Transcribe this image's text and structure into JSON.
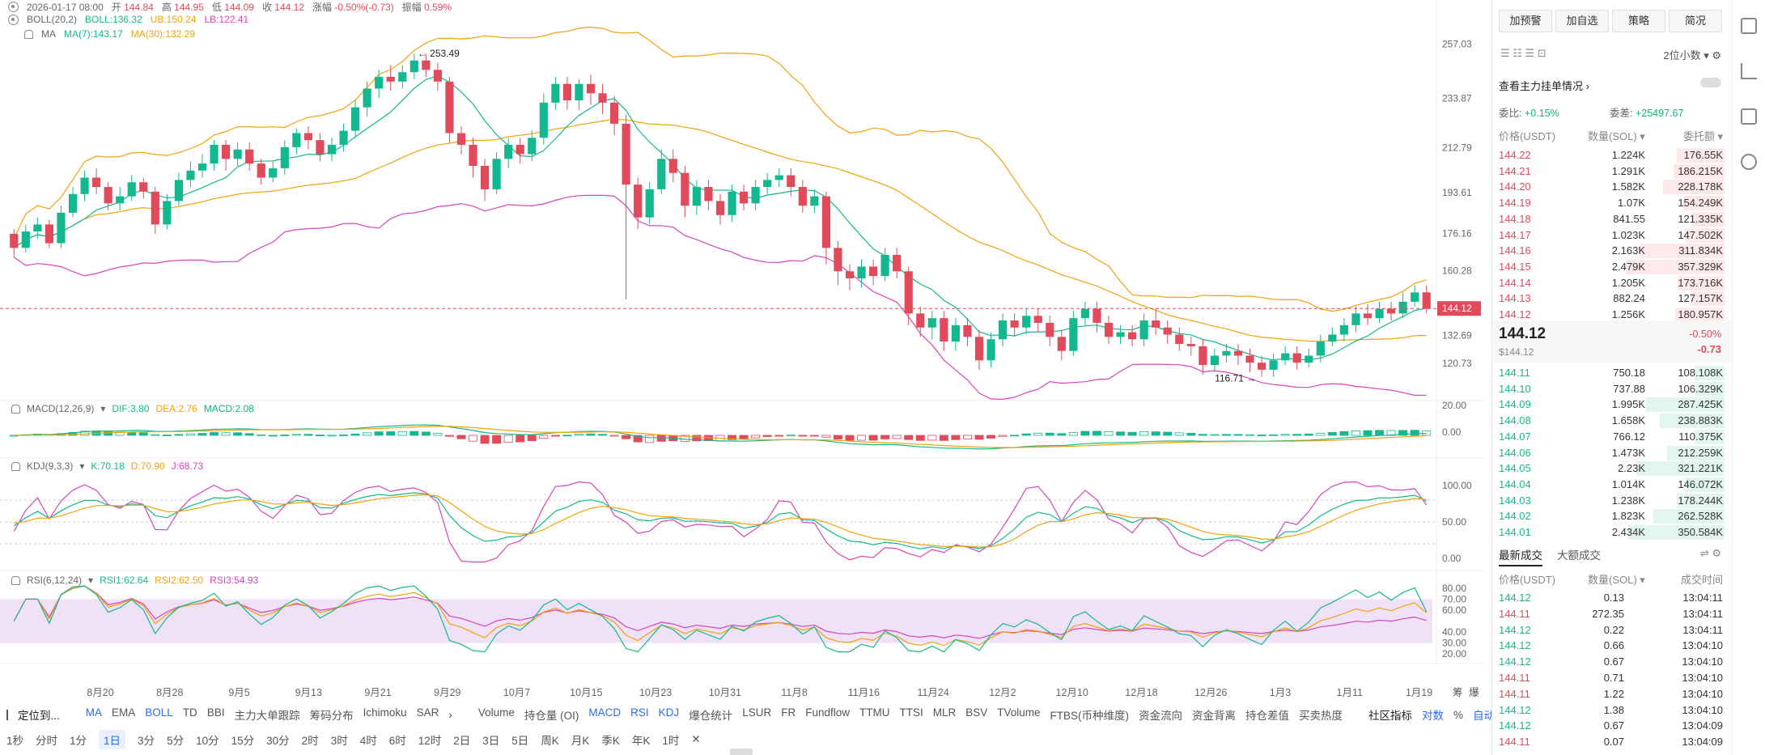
{
  "header": {
    "datetime": "2026-01-17 08:00",
    "open_label": "开",
    "open": "144.84",
    "high_label": "高",
    "high": "144.95",
    "low_label": "低",
    "low": "144.09",
    "close_label": "收",
    "close": "144.12",
    "change_label": "涨幅",
    "change": "-0.50%(-0.73)",
    "amp_label": "振幅",
    "amp": "0.59%"
  },
  "boll": {
    "name": "BOLL(20,2)",
    "mid": "BOLL:136.32",
    "ub": "UB:150.24",
    "lb": "LB:122.41"
  },
  "ma": {
    "name": "MA",
    "ma7": "MA(7):143.17",
    "ma30": "MA(30):132.29"
  },
  "macd": {
    "name": "MACD(12,26,9)",
    "dif": "DIF:3.80",
    "dea": "DEA:2.76",
    "macd": "MACD:2.08"
  },
  "kdj": {
    "name": "KDJ(9,3,3)",
    "k": "K:70.18",
    "d": "D:70.90",
    "j": "J:68.73"
  },
  "rsi": {
    "name": "RSI(6,12,24)",
    "r1": "RSI1:62.64",
    "r2": "RSI2:62.50",
    "r3": "RSI3:54.93"
  },
  "price_axis": [
    "257.03",
    "233.87",
    "212.79",
    "193.61",
    "176.16",
    "160.28",
    "132.69",
    "120.73"
  ],
  "macd_axis": [
    "20.00",
    "0.00"
  ],
  "kdj_axis": [
    "100.00",
    "50.00",
    "0.00"
  ],
  "rsi_axis": [
    "80.00",
    "70.00",
    "60.00",
    "40.00",
    "30.00",
    "20.00"
  ],
  "current_price_tag": "144.12",
  "high_marker": "253.49",
  "low_marker": "116.71",
  "date_axis": [
    "8月20",
    "8月28",
    "9月5",
    "9月13",
    "9月21",
    "9月29",
    "10月7",
    "10月15",
    "10月23",
    "10月31",
    "11月8",
    "11月16",
    "11月24",
    "12月2",
    "12月10",
    "12月18",
    "12月26",
    "1月3",
    "1月11",
    "1月19"
  ],
  "date_axis_extra": [
    "筹",
    "爆"
  ],
  "toolbar": {
    "locate": "定位到...",
    "indicators": [
      "MA",
      "EMA",
      "BOLL",
      "TD",
      "BBI",
      "主力大单跟踪",
      "筹码分布",
      "Ichimoku",
      "SAR"
    ],
    "active_indicators": [
      "MA",
      "BOLL",
      "MACD",
      "RSI",
      "KDJ"
    ],
    "sub_indicators": [
      "Volume",
      "持仓量 (OI)",
      "MACD",
      "RSI",
      "KDJ",
      "爆仓统计",
      "LSUR",
      "FR",
      "Fundflow",
      "TTMU",
      "TTSI",
      "MLR",
      "BSV",
      "TVolume",
      "FTBS(币种维度)",
      "资金流向",
      "资金背离",
      "持仓差值",
      "买卖热度"
    ],
    "community": "社区指标",
    "log": "对数",
    "pct": "%",
    "auto": "自动"
  },
  "timeframes": [
    "1秒",
    "分时",
    "1分",
    "1日",
    "3分",
    "5分",
    "10分",
    "15分",
    "30分",
    "2时",
    "3时",
    "4时",
    "6时",
    "12时",
    "2日",
    "3日",
    "5日",
    "周K",
    "月K",
    "季K",
    "年K",
    "1时"
  ],
  "timeframe_selected": "1日",
  "panel": {
    "buttons": [
      "加预警",
      "加自选",
      "策略",
      "简况"
    ],
    "precision": "2位小数",
    "main_order_label": "查看主力挂单情况",
    "wb_label": "委比:",
    "wb_value": "+0.15%",
    "wc_label": "委差:",
    "wc_value": "+25497.67",
    "col_price": "价格(USDT)",
    "col_qty": "数量(SOL)",
    "col_total": "委托额",
    "asks": [
      [
        "144.22",
        "1.224K",
        "176.55K",
        0.35
      ],
      [
        "144.21",
        "1.291K",
        "186.215K",
        0.37
      ],
      [
        "144.20",
        "1.582K",
        "228.178K",
        0.45
      ],
      [
        "144.19",
        "1.07K",
        "154.249K",
        0.3
      ],
      [
        "144.18",
        "841.55",
        "121.335K",
        0.24
      ],
      [
        "144.17",
        "1.023K",
        "147.502K",
        0.29
      ],
      [
        "144.16",
        "2.163K",
        "311.834K",
        0.62
      ],
      [
        "144.15",
        "2.479K",
        "357.329K",
        0.72
      ],
      [
        "144.14",
        "1.205K",
        "173.716K",
        0.34
      ],
      [
        "144.13",
        "882.24",
        "127.157K",
        0.25
      ],
      [
        "144.12",
        "1.256K",
        "180.957K",
        0.36
      ]
    ],
    "last_price": "144.12",
    "last_price_usd": "$144.12",
    "last_change_pct": "-0.50%",
    "last_change": "-0.73",
    "bids": [
      [
        "144.11",
        "750.18",
        "108.108K",
        0.22
      ],
      [
        "144.10",
        "737.88",
        "106.329K",
        0.21
      ],
      [
        "144.09",
        "1.995K",
        "287.425K",
        0.57
      ],
      [
        "144.08",
        "1.658K",
        "238.883K",
        0.47
      ],
      [
        "144.07",
        "766.12",
        "110.375K",
        0.22
      ],
      [
        "144.06",
        "1.473K",
        "212.259K",
        0.42
      ],
      [
        "144.05",
        "2.23K",
        "321.221K",
        0.64
      ],
      [
        "144.04",
        "1.014K",
        "146.072K",
        0.29
      ],
      [
        "144.03",
        "1.238K",
        "178.244K",
        0.35
      ],
      [
        "144.02",
        "1.823K",
        "262.528K",
        0.52
      ],
      [
        "144.01",
        "2.434K",
        "350.584K",
        0.7
      ]
    ],
    "trades_tab": "最新成交",
    "big_trades_tab": "大额成交",
    "tr_col_price": "价格(USDT)",
    "tr_col_qty": "数量(SOL)",
    "tr_col_time": "成交时间",
    "trades": [
      [
        "144.12",
        "0.13",
        "13:04:11",
        "up"
      ],
      [
        "144.11",
        "272.35",
        "13:04:11",
        "down"
      ],
      [
        "144.12",
        "0.22",
        "13:04:11",
        "up"
      ],
      [
        "144.12",
        "0.66",
        "13:04:10",
        "up"
      ],
      [
        "144.12",
        "0.67",
        "13:04:10",
        "up"
      ],
      [
        "144.11",
        "0.71",
        "13:04:10",
        "down"
      ],
      [
        "144.11",
        "1.22",
        "13:04:10",
        "down"
      ],
      [
        "144.12",
        "1.38",
        "13:04:10",
        "up"
      ],
      [
        "144.12",
        "0.67",
        "13:04:09",
        "up"
      ],
      [
        "144.11",
        "0.07",
        "13:04:09",
        "down"
      ]
    ]
  },
  "colors": {
    "up": "#14b88f",
    "down": "#e04a5a",
    "accent": "#2b6ef2",
    "ma7": "#14b88f",
    "ma30": "#f2a20d",
    "boll_band": "#d745b9",
    "boll_upper": "#f2a20d"
  },
  "chart_data": {
    "type": "candlestick",
    "price_range": [
      110,
      262
    ],
    "candles": [
      [
        176,
        170,
        178,
        166
      ],
      [
        170,
        177,
        180,
        168
      ],
      [
        177,
        180,
        183,
        174
      ],
      [
        180,
        172,
        182,
        170
      ],
      [
        172,
        185,
        188,
        170
      ],
      [
        185,
        193,
        196,
        183
      ],
      [
        193,
        200,
        203,
        190
      ],
      [
        200,
        196,
        204,
        193
      ],
      [
        196,
        189,
        198,
        186
      ],
      [
        189,
        192,
        196,
        186
      ],
      [
        192,
        198,
        201,
        190
      ],
      [
        198,
        194,
        200,
        191
      ],
      [
        194,
        180,
        196,
        176
      ],
      [
        180,
        190,
        193,
        178
      ],
      [
        190,
        199,
        202,
        188
      ],
      [
        199,
        203,
        207,
        196
      ],
      [
        203,
        206,
        210,
        200
      ],
      [
        206,
        214,
        216,
        203
      ],
      [
        214,
        208,
        216,
        203
      ],
      [
        208,
        212,
        215,
        205
      ],
      [
        212,
        206,
        215,
        203
      ],
      [
        206,
        200,
        208,
        197
      ],
      [
        200,
        204,
        207,
        198
      ],
      [
        204,
        213,
        216,
        201
      ],
      [
        213,
        219,
        221,
        210
      ],
      [
        219,
        216,
        222,
        212
      ],
      [
        216,
        210,
        219,
        207
      ],
      [
        210,
        214,
        217,
        207
      ],
      [
        214,
        220,
        223,
        211
      ],
      [
        220,
        230,
        233,
        217
      ],
      [
        230,
        238,
        241,
        226
      ],
      [
        238,
        243,
        246,
        234
      ],
      [
        243,
        241,
        248,
        237
      ],
      [
        241,
        245,
        248,
        238
      ],
      [
        245,
        250,
        253,
        242
      ],
      [
        250,
        246,
        253,
        243
      ],
      [
        246,
        241,
        249,
        237
      ],
      [
        241,
        219,
        243,
        215
      ],
      [
        219,
        214,
        222,
        210
      ],
      [
        214,
        205,
        217,
        200
      ],
      [
        205,
        195,
        208,
        190
      ],
      [
        195,
        208,
        211,
        193
      ],
      [
        208,
        214,
        217,
        204
      ],
      [
        214,
        210,
        217,
        206
      ],
      [
        210,
        217,
        220,
        207
      ],
      [
        217,
        232,
        236,
        214
      ],
      [
        232,
        240,
        243,
        229
      ],
      [
        240,
        233,
        243,
        229
      ],
      [
        233,
        240,
        242,
        229
      ],
      [
        240,
        236,
        244,
        231
      ],
      [
        236,
        232,
        240,
        227
      ],
      [
        232,
        223,
        235,
        218
      ],
      [
        223,
        197,
        227,
        148
      ],
      [
        197,
        183,
        200,
        178
      ],
      [
        183,
        195,
        198,
        180
      ],
      [
        195,
        208,
        212,
        193
      ],
      [
        208,
        202,
        212,
        198
      ],
      [
        202,
        188,
        205,
        183
      ],
      [
        188,
        196,
        199,
        184
      ],
      [
        196,
        190,
        199,
        186
      ],
      [
        190,
        184,
        193,
        180
      ],
      [
        184,
        194,
        197,
        181
      ],
      [
        194,
        189,
        197,
        186
      ],
      [
        189,
        196,
        199,
        186
      ],
      [
        196,
        199,
        202,
        193
      ],
      [
        199,
        201,
        204,
        196
      ],
      [
        201,
        196,
        204,
        192
      ],
      [
        196,
        188,
        199,
        185
      ],
      [
        188,
        192,
        195,
        185
      ],
      [
        192,
        170,
        194,
        163
      ],
      [
        170,
        160,
        173,
        154
      ],
      [
        160,
        157,
        163,
        152
      ],
      [
        157,
        162,
        165,
        153
      ],
      [
        162,
        158,
        165,
        154
      ],
      [
        158,
        167,
        170,
        156
      ],
      [
        167,
        160,
        170,
        157
      ],
      [
        160,
        142,
        162,
        137
      ],
      [
        142,
        136,
        145,
        132
      ],
      [
        136,
        140,
        143,
        131
      ],
      [
        140,
        130,
        143,
        126
      ],
      [
        130,
        137,
        140,
        126
      ],
      [
        137,
        132,
        140,
        128
      ],
      [
        132,
        122,
        135,
        118
      ],
      [
        122,
        131,
        134,
        119
      ],
      [
        131,
        139,
        142,
        128
      ],
      [
        139,
        136,
        142,
        132
      ],
      [
        136,
        141,
        144,
        133
      ],
      [
        141,
        138,
        144,
        134
      ],
      [
        138,
        132,
        141,
        128
      ],
      [
        132,
        126,
        135,
        122
      ],
      [
        126,
        140,
        143,
        124
      ],
      [
        140,
        144,
        147,
        137
      ],
      [
        144,
        138,
        147,
        134
      ],
      [
        138,
        132,
        141,
        129
      ],
      [
        132,
        134,
        137,
        129
      ],
      [
        134,
        131,
        137,
        128
      ],
      [
        131,
        139,
        142,
        128
      ],
      [
        139,
        136,
        144,
        133
      ],
      [
        136,
        133,
        139,
        129
      ],
      [
        133,
        129,
        136,
        126
      ],
      [
        129,
        128,
        132,
        124
      ],
      [
        128,
        120,
        131,
        116
      ],
      [
        120,
        124,
        127,
        117
      ],
      [
        124,
        126,
        129,
        121
      ],
      [
        126,
        124,
        129,
        120
      ],
      [
        124,
        121,
        127,
        117
      ],
      [
        121,
        118,
        124,
        115
      ],
      [
        118,
        122,
        125,
        115
      ],
      [
        122,
        125,
        128,
        120
      ],
      [
        125,
        121,
        128,
        118
      ],
      [
        121,
        124,
        127,
        119
      ],
      [
        124,
        130,
        133,
        121
      ],
      [
        130,
        133,
        136,
        128
      ],
      [
        133,
        137,
        140,
        130
      ],
      [
        137,
        142,
        145,
        134
      ],
      [
        142,
        140,
        146,
        137
      ],
      [
        140,
        144,
        147,
        138
      ],
      [
        144,
        142,
        147,
        139
      ],
      [
        142,
        147,
        151,
        140
      ],
      [
        147,
        151,
        154,
        145
      ],
      [
        151,
        144,
        154,
        142
      ]
    ]
  }
}
